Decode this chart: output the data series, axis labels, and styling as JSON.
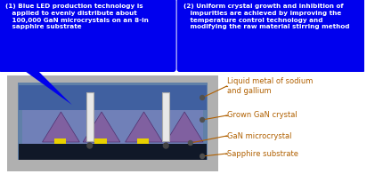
{
  "bg_color": "#ffffff",
  "bubble1_color": "#0000ee",
  "bubble2_color": "#0000ee",
  "bubble1_text": "(1) Blue LED production technology is\n   applied to evenly distribute about\n   100,000 GaN microcrystals on an 8-in\n   sapphire substrate",
  "bubble2_text": "(2) Uniform crystal growth and inhibition of\n   impurities are achieved by improving the\n   temperature control technology and\n   modifying the raw material stirring method",
  "label1": "Liquid metal of sodium\nand gallium",
  "label2": "Grown GaN crystal",
  "label3": "GaN microcrystal",
  "label4": "Sapphire substrate",
  "label_color": "#b06000",
  "outer_color": "#b0b0b0",
  "inner_bg_color": "#6080a8",
  "liquid_color": "#4060a0",
  "crystal_body_color": "#7080b8",
  "crystal_v_color": "#8060a0",
  "substrate_color": "#101828",
  "yellow_color": "#e8d000",
  "rod_color": "#e8e8e8",
  "rod_border": "#aaaaaa",
  "line_color": "#607888",
  "figsize": [
    4.3,
    1.96
  ],
  "dpi": 100
}
